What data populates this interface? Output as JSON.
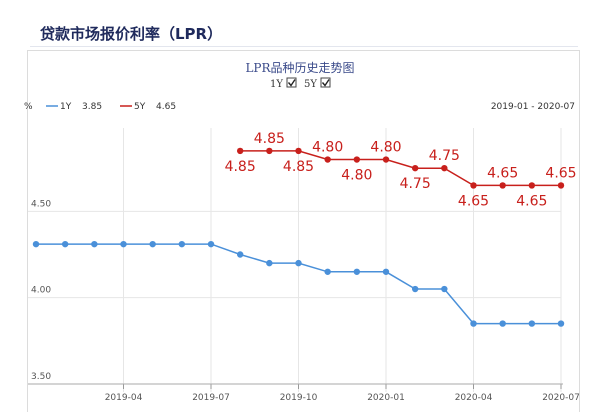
{
  "page_title": "贷款市场报价利率（LPR）",
  "chart_data": {
    "type": "line",
    "title": "LPR品种历史走势图",
    "ylabel": "%",
    "ylim": [
      3.5,
      5.0
    ],
    "yticks": [
      3.5,
      4.0,
      4.5
    ],
    "yticks_labels": [
      "3.50",
      "4.00",
      "4.50"
    ],
    "xticks_labels": [
      "2019-04",
      "2019-07",
      "2019-10",
      "2020-01",
      "2020-04",
      "2020-07"
    ],
    "date_range": "2019-01 - 2020-07",
    "toggles": [
      {
        "label": "1Y",
        "checked": true
      },
      {
        "label": "5Y",
        "checked": true
      }
    ],
    "grid": true,
    "legend_position": "top-left",
    "x": [
      "2019-01",
      "2019-02",
      "2019-03",
      "2019-04",
      "2019-05",
      "2019-06",
      "2019-07",
      "2019-08",
      "2019-09",
      "2019-10",
      "2019-11",
      "2019-12",
      "2020-01",
      "2020-02",
      "2020-03",
      "2020-04",
      "2020-05",
      "2020-06",
      "2020-07"
    ],
    "series": [
      {
        "name": "1Y",
        "legend_value": "3.85",
        "color": "#4a90d9",
        "values": [
          4.31,
          4.31,
          4.31,
          4.31,
          4.31,
          4.31,
          4.31,
          4.25,
          4.2,
          4.2,
          4.15,
          4.15,
          4.15,
          4.05,
          4.05,
          3.85,
          3.85,
          3.85,
          3.85
        ]
      },
      {
        "name": "5Y",
        "legend_value": "4.65",
        "color": "#c8201c",
        "values": [
          null,
          null,
          null,
          null,
          null,
          null,
          null,
          4.85,
          4.85,
          4.85,
          4.8,
          4.8,
          4.8,
          4.75,
          4.75,
          4.65,
          4.65,
          4.65,
          4.65
        ]
      }
    ],
    "annotations": [
      "4.85",
      "4.85",
      "4.85",
      "4.80",
      "4.80",
      "4.80",
      "4.75",
      "4.75",
      "4.65",
      "4.65",
      "4.65",
      "4.65"
    ]
  }
}
